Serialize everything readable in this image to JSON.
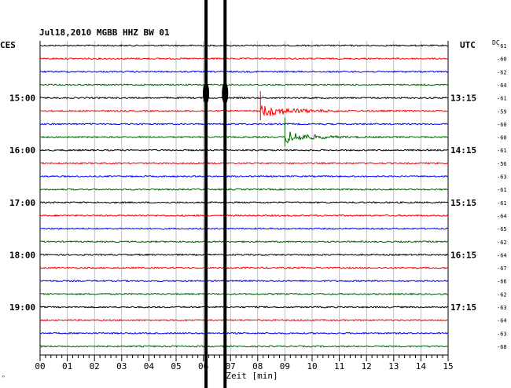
{
  "header": {
    "title": "Jul18,2010   MGBB HHZ BW 01",
    "left_label": "CES",
    "right_label": "UTC",
    "dc_label": "DC",
    "corner_mark": "ⁿ"
  },
  "chart_data": {
    "type": "line",
    "xlabel": "Zeit [min]",
    "xlim": [
      0,
      15
    ],
    "x_ticks": [
      "00",
      "01",
      "02",
      "03",
      "04",
      "05",
      "06",
      "07",
      "08",
      "09",
      "10",
      "11",
      "12",
      "13",
      "14",
      "15"
    ],
    "trace_count": 24,
    "trace_colors": [
      "#000000",
      "#ff0000",
      "#0000ff",
      "#006400"
    ],
    "left_time_labels": [
      {
        "row": 4,
        "text": "15:00"
      },
      {
        "row": 8,
        "text": "16:00"
      },
      {
        "row": 12,
        "text": "17:00"
      },
      {
        "row": 16,
        "text": "18:00"
      },
      {
        "row": 20,
        "text": "19:00"
      }
    ],
    "right_time_labels": [
      {
        "row": 4,
        "text": "13:15"
      },
      {
        "row": 8,
        "text": "14:15"
      },
      {
        "row": 12,
        "text": "15:15"
      },
      {
        "row": 16,
        "text": "16:15"
      },
      {
        "row": 20,
        "text": "17:15"
      }
    ],
    "dc_values": [
      "-61",
      "-60",
      "-62",
      "-64",
      "-61",
      "-59",
      "-60",
      "-60",
      "-61",
      "-56",
      "-63",
      "-61",
      "-61",
      "-64",
      "-65",
      "-62",
      "-64",
      "-67",
      "-66",
      "-62",
      "-63",
      "-64",
      "-63",
      "-68"
    ],
    "events": [
      {
        "row": 5,
        "onset_min": 8.1,
        "duration_min": 4.5
      },
      {
        "row": 7,
        "onset_min": 9.0,
        "duration_min": 3.6
      }
    ],
    "vertical_spikes_min": [
      6.1,
      6.8
    ]
  }
}
